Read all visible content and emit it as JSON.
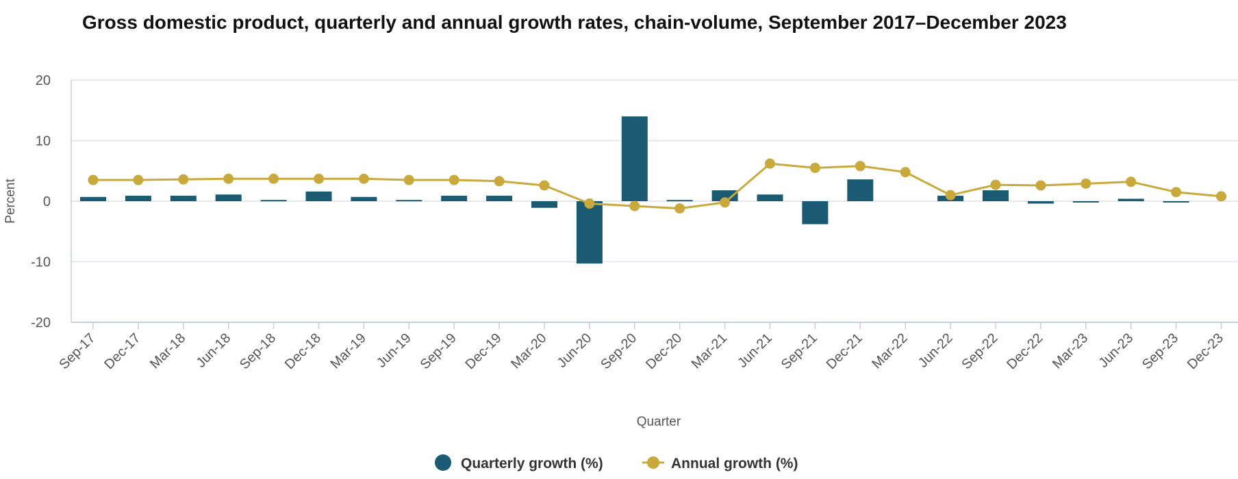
{
  "colors": {
    "quarterly": "#1a5a72",
    "annual": "#c9a83c",
    "grid": "#dde1ea",
    "axis": "#c5cde0",
    "text": "#555555"
  },
  "chart_data": {
    "type": "bar",
    "title": "Gross domestic product, quarterly and annual growth rates, chain-volume, September 2017–December 2023",
    "xlabel": "Quarter",
    "ylabel": "Percent",
    "ylim": [
      -20,
      20
    ],
    "yticks": [
      20,
      10,
      0,
      -10,
      -20
    ],
    "grid": true,
    "legend_position": "bottom-center",
    "categories": [
      "Sep-17",
      "Dec-17",
      "Mar-18",
      "Jun-18",
      "Sep-18",
      "Dec-18",
      "Mar-19",
      "Jun-19",
      "Sep-19",
      "Dec-19",
      "Mar-20",
      "Jun-20",
      "Sep-20",
      "Dec-20",
      "Mar-21",
      "Jun-21",
      "Sep-21",
      "Dec-21",
      "Mar-22",
      "Jun-22",
      "Sep-22",
      "Dec-22",
      "Mar-23",
      "Jun-23",
      "Sep-23",
      "Dec-23"
    ],
    "series": [
      {
        "name": "Quarterly growth (%)",
        "type": "bar",
        "values": [
          0.7,
          0.9,
          0.9,
          1.1,
          0.2,
          1.6,
          0.7,
          0.2,
          0.9,
          0.9,
          -1.1,
          -10.3,
          14.0,
          0.2,
          1.8,
          1.1,
          -3.8,
          3.6,
          0.0,
          0.9,
          1.8,
          -0.4,
          -0.2,
          0.4,
          -0.2,
          0.0
        ]
      },
      {
        "name": "Annual growth (%)",
        "type": "line",
        "values": [
          3.5,
          3.5,
          3.6,
          3.7,
          3.7,
          3.7,
          3.7,
          3.5,
          3.5,
          3.3,
          2.6,
          -0.4,
          -0.8,
          -1.2,
          -0.2,
          6.2,
          5.5,
          5.8,
          4.8,
          1.0,
          2.7,
          2.6,
          2.9,
          3.2,
          1.5,
          0.8
        ]
      }
    ]
  }
}
